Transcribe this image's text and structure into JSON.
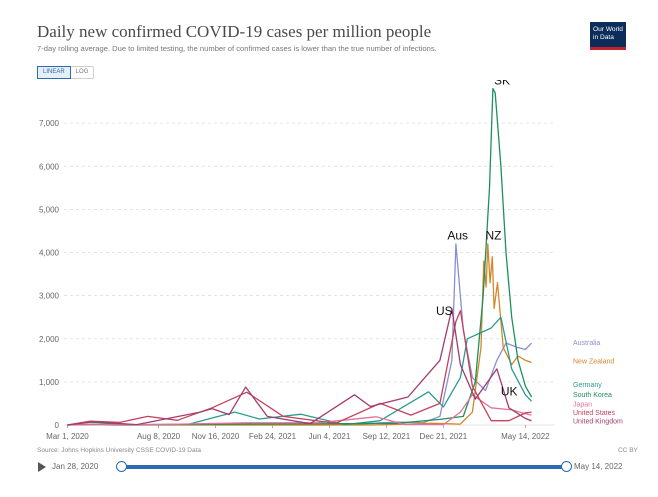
{
  "header": {
    "title": "Daily new confirmed COVID-19 cases per million people",
    "subtitle": "7-day rolling average. Due to limited testing, the number of confirmed cases is lower than the true number of infections.",
    "logo_line1": "Our World",
    "logo_line2": "in Data"
  },
  "scale_toggle": {
    "linear_label": "LINEAR",
    "log_label": "LOG",
    "selected": "linear"
  },
  "footer": {
    "source": "Source: Johns Hopkins University CSSE COVID-19 Data",
    "license": "CC BY"
  },
  "timeline": {
    "start_label": "Jan 28, 2020",
    "end_label": "May 14, 2022"
  },
  "colors": {
    "australia": "#8a8fd1",
    "new_zealand": "#d3872a",
    "germany": "#2a9b8f",
    "south_korea": "#1f8f5e",
    "japan": "#e0739a",
    "united_states": "#c2425b",
    "united_kingdom": "#a33c6e"
  },
  "chart_data": {
    "type": "line",
    "title": "Daily new confirmed COVID-19 cases per million people",
    "x_axis_type": "date",
    "xlim": [
      "2020-02-24",
      "2022-07-05"
    ],
    "ylim": [
      0,
      8000
    ],
    "x_ticks": [
      "2020-03-01",
      "2020-08-08",
      "2020-11-16",
      "2021-02-24",
      "2021-06-04",
      "2021-09-12",
      "2021-12-21",
      "2022-05-14"
    ],
    "x_tick_labels": [
      "Mar 1, 2020",
      "Aug 8, 2020",
      "Nov 16, 2020",
      "Feb 24, 2021",
      "Jun 4, 2021",
      "Sep 12, 2021",
      "Dec 21, 2021",
      "May 14, 2022"
    ],
    "y_ticks": [
      0,
      1000,
      2000,
      3000,
      4000,
      5000,
      6000,
      7000
    ],
    "y_tick_labels": [
      "0",
      "1,000",
      "2,000",
      "3,000",
      "4,000",
      "5,000",
      "6,000",
      "7,000"
    ],
    "grid": "horizontal",
    "annotations": [
      {
        "text": "SK",
        "x": "2022-03-20",
        "y": 7900
      },
      {
        "text": "Aus",
        "x": "2021-12-28",
        "y": 4300
      },
      {
        "text": "NZ",
        "x": "2022-03-05",
        "y": 4300
      },
      {
        "text": "US",
        "x": "2021-12-08",
        "y": 2550
      },
      {
        "text": "UK",
        "x": "2022-04-01",
        "y": 680
      }
    ],
    "series": [
      {
        "name": "Australia",
        "color_key": "australia",
        "points": [
          [
            "2020-03-01",
            0
          ],
          [
            "2020-04-01",
            10
          ],
          [
            "2020-06-01",
            2
          ],
          [
            "2020-08-01",
            15
          ],
          [
            "2020-10-01",
            1
          ],
          [
            "2021-06-01",
            1
          ],
          [
            "2021-08-01",
            30
          ],
          [
            "2021-10-01",
            70
          ],
          [
            "2021-11-15",
            50
          ],
          [
            "2021-12-15",
            200
          ],
          [
            "2022-01-05",
            1500
          ],
          [
            "2022-01-12",
            4200
          ],
          [
            "2022-01-25",
            2200
          ],
          [
            "2022-02-10",
            1100
          ],
          [
            "2022-03-05",
            800
          ],
          [
            "2022-03-25",
            1500
          ],
          [
            "2022-04-10",
            1900
          ],
          [
            "2022-04-30",
            1800
          ],
          [
            "2022-05-14",
            1750
          ],
          [
            "2022-05-25",
            1900
          ]
        ]
      },
      {
        "name": "New Zealand",
        "color_key": "new_zealand",
        "points": [
          [
            "2020-03-01",
            0
          ],
          [
            "2020-04-05",
            15
          ],
          [
            "2020-05-15",
            0
          ],
          [
            "2021-08-20",
            0
          ],
          [
            "2021-10-20",
            20
          ],
          [
            "2021-12-01",
            40
          ],
          [
            "2022-01-20",
            20
          ],
          [
            "2022-02-10",
            300
          ],
          [
            "2022-02-25",
            1800
          ],
          [
            "2022-03-02",
            3800
          ],
          [
            "2022-03-06",
            3200
          ],
          [
            "2022-03-09",
            4200
          ],
          [
            "2022-03-13",
            3300
          ],
          [
            "2022-03-17",
            3900
          ],
          [
            "2022-03-20",
            2700
          ],
          [
            "2022-03-26",
            3300
          ],
          [
            "2022-04-05",
            1800
          ],
          [
            "2022-04-20",
            1400
          ],
          [
            "2022-05-01",
            1600
          ],
          [
            "2022-05-14",
            1500
          ],
          [
            "2022-05-25",
            1450
          ]
        ]
      },
      {
        "name": "Germany",
        "color_key": "germany",
        "points": [
          [
            "2020-03-01",
            0
          ],
          [
            "2020-04-01",
            60
          ],
          [
            "2020-07-01",
            5
          ],
          [
            "2020-10-01",
            20
          ],
          [
            "2020-11-15",
            180
          ],
          [
            "2020-12-20",
            300
          ],
          [
            "2021-02-01",
            140
          ],
          [
            "2021-04-15",
            250
          ],
          [
            "2021-07-01",
            10
          ],
          [
            "2021-09-01",
            100
          ],
          [
            "2021-11-25",
            770
          ],
          [
            "2021-12-21",
            420
          ],
          [
            "2022-01-20",
            1100
          ],
          [
            "2022-02-01",
            2000
          ],
          [
            "2022-03-15",
            2250
          ],
          [
            "2022-04-01",
            2500
          ],
          [
            "2022-04-20",
            1300
          ],
          [
            "2022-05-14",
            700
          ],
          [
            "2022-05-25",
            550
          ]
        ]
      },
      {
        "name": "South Korea",
        "color_key": "south_korea",
        "points": [
          [
            "2020-03-01",
            10
          ],
          [
            "2020-06-01",
            1
          ],
          [
            "2020-12-20",
            20
          ],
          [
            "2021-07-15",
            30
          ],
          [
            "2021-10-01",
            40
          ],
          [
            "2021-12-15",
            130
          ],
          [
            "2022-01-25",
            200
          ],
          [
            "2022-02-15",
            1000
          ],
          [
            "2022-03-01",
            3000
          ],
          [
            "2022-03-12",
            5500
          ],
          [
            "2022-03-18",
            7800
          ],
          [
            "2022-03-22",
            7700
          ],
          [
            "2022-04-01",
            6000
          ],
          [
            "2022-04-10",
            4000
          ],
          [
            "2022-04-20",
            2500
          ],
          [
            "2022-05-01",
            1500
          ],
          [
            "2022-05-14",
            900
          ],
          [
            "2022-05-25",
            650
          ]
        ]
      },
      {
        "name": "Japan",
        "color_key": "japan",
        "points": [
          [
            "2020-03-01",
            0
          ],
          [
            "2020-08-01",
            10
          ],
          [
            "2021-01-10",
            50
          ],
          [
            "2021-05-15",
            50
          ],
          [
            "2021-08-25",
            190
          ],
          [
            "2021-10-15",
            10
          ],
          [
            "2021-12-21",
            10
          ],
          [
            "2022-01-20",
            300
          ],
          [
            "2022-02-10",
            700
          ],
          [
            "2022-03-15",
            400
          ],
          [
            "2022-04-20",
            350
          ],
          [
            "2022-05-14",
            260
          ],
          [
            "2022-05-25",
            230
          ]
        ]
      },
      {
        "name": "United States",
        "color_key": "united_states",
        "points": [
          [
            "2020-03-01",
            0
          ],
          [
            "2020-04-10",
            90
          ],
          [
            "2020-06-01",
            60
          ],
          [
            "2020-07-20",
            200
          ],
          [
            "2020-09-10",
            110
          ],
          [
            "2020-11-10",
            400
          ],
          [
            "2021-01-10",
            760
          ],
          [
            "2021-03-15",
            200
          ],
          [
            "2021-06-15",
            40
          ],
          [
            "2021-09-01",
            500
          ],
          [
            "2021-10-25",
            230
          ],
          [
            "2021-12-15",
            500
          ],
          [
            "2022-01-12",
            2400
          ],
          [
            "2022-01-20",
            2650
          ],
          [
            "2022-02-10",
            900
          ],
          [
            "2022-03-15",
            100
          ],
          [
            "2022-04-15",
            100
          ],
          [
            "2022-05-14",
            280
          ],
          [
            "2022-05-25",
            300
          ]
        ]
      },
      {
        "name": "United Kingdom",
        "color_key": "united_kingdom",
        "points": [
          [
            "2020-03-01",
            0
          ],
          [
            "2020-04-15",
            70
          ],
          [
            "2020-07-01",
            10
          ],
          [
            "2020-10-20",
            300
          ],
          [
            "2020-11-10",
            380
          ],
          [
            "2020-12-10",
            240
          ],
          [
            "2021-01-08",
            880
          ],
          [
            "2021-02-15",
            200
          ],
          [
            "2021-05-01",
            30
          ],
          [
            "2021-07-18",
            700
          ],
          [
            "2021-08-15",
            430
          ],
          [
            "2021-10-20",
            650
          ],
          [
            "2021-12-15",
            1500
          ],
          [
            "2022-01-05",
            2700
          ],
          [
            "2022-01-20",
            1400
          ],
          [
            "2022-02-15",
            600
          ],
          [
            "2022-03-25",
            1300
          ],
          [
            "2022-04-15",
            400
          ],
          [
            "2022-05-14",
            150
          ],
          [
            "2022-05-25",
            100
          ]
        ]
      }
    ],
    "end_labels": [
      {
        "text": "Australia",
        "color_key": "australia",
        "y": 1920
      },
      {
        "text": "New Zealand",
        "color_key": "new_zealand",
        "y": 1500
      },
      {
        "text": "Germany",
        "color_key": "germany",
        "y": 950
      },
      {
        "text": "South Korea",
        "color_key": "south_korea",
        "y": 720
      },
      {
        "text": "Japan",
        "color_key": "japan",
        "y": 500
      },
      {
        "text": "United States",
        "color_key": "united_states",
        "y": 300
      },
      {
        "text": "United Kingdom",
        "color_key": "united_kingdom",
        "y": 110
      }
    ]
  }
}
